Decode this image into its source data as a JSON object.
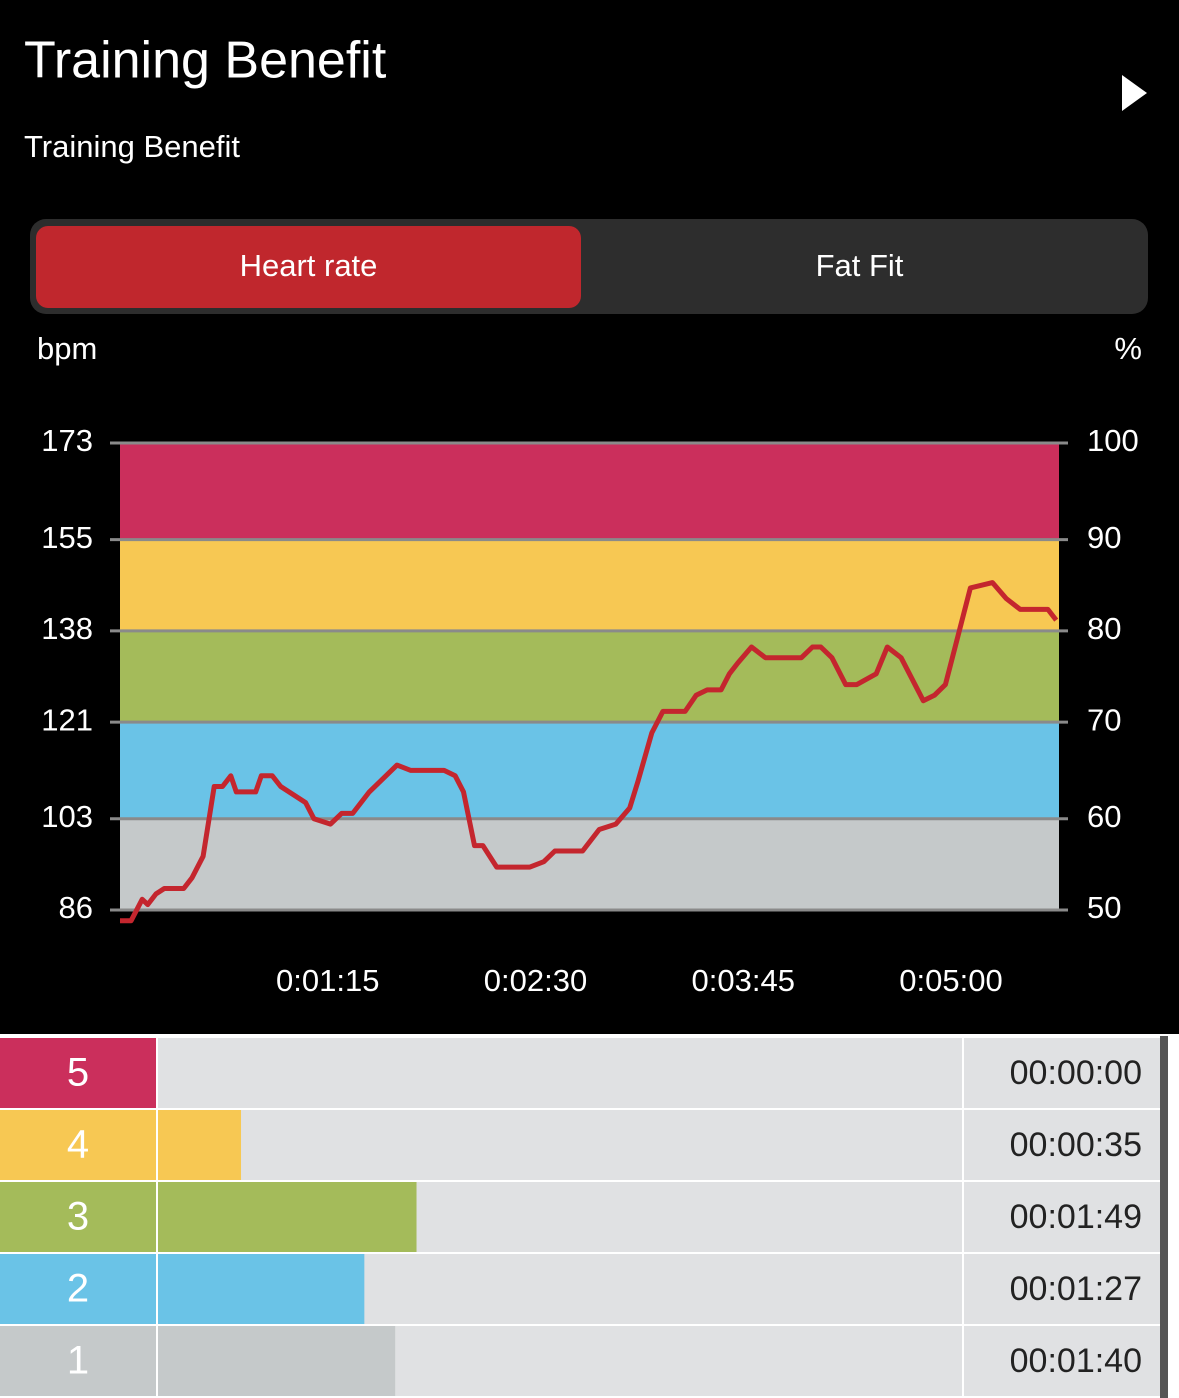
{
  "header": {
    "title": "Training Benefit",
    "subtitle": "Training Benefit"
  },
  "tabs": [
    {
      "label": "Heart rate",
      "selected": true
    },
    {
      "label": "Fat Fit",
      "selected": false
    }
  ],
  "chart_data": {
    "type": "line",
    "y_label": "bpm",
    "y2_label": "%",
    "color": "#c4262e",
    "x": [
      0,
      4,
      8,
      10,
      13,
      16,
      23,
      26,
      30,
      34,
      37,
      40,
      42,
      49,
      51,
      55,
      58,
      61,
      67,
      70,
      76,
      80,
      84,
      87,
      90,
      94,
      100,
      105,
      117,
      121,
      124,
      128,
      131,
      136,
      143,
      148,
      153,
      157,
      167,
      173,
      179,
      184,
      187,
      192,
      196,
      204,
      208,
      212,
      217,
      220,
      223,
      228,
      233,
      236,
      246,
      250,
      253,
      257,
      262,
      266,
      273,
      277,
      282,
      286,
      290,
      294,
      298,
      303,
      307,
      315,
      320,
      325,
      335,
      338
    ],
    "values": [
      84,
      84,
      88,
      87,
      89,
      90,
      90,
      92,
      96,
      109,
      109,
      111,
      108,
      108,
      111,
      111,
      109,
      108,
      106,
      103,
      102,
      104,
      104,
      106,
      108,
      110,
      113,
      112,
      112,
      111,
      108,
      98,
      98,
      94,
      94,
      94,
      95,
      97,
      97,
      101,
      102,
      105,
      110,
      119,
      123,
      123,
      126,
      127,
      127,
      130,
      132,
      135,
      133,
      133,
      133,
      135,
      135,
      133,
      128,
      128,
      130,
      135,
      133,
      129,
      125,
      126,
      128,
      138,
      146,
      147,
      144,
      142,
      142,
      140
    ],
    "xlim": [
      0,
      339
    ],
    "xticks": [
      {
        "value": 75,
        "label": "0:01:15"
      },
      {
        "value": 150,
        "label": "0:02:30"
      },
      {
        "value": 225,
        "label": "0:03:45"
      },
      {
        "value": 300,
        "label": "0:05:00"
      }
    ],
    "ylim": [
      86,
      173
    ],
    "yticks": [
      173,
      155,
      138,
      121,
      103,
      86
    ],
    "y2lim": [
      50,
      100
    ],
    "y2ticks": [
      100,
      90,
      80,
      70,
      60,
      50
    ],
    "band_colors": [
      "#cb2f5c",
      "#f7c853",
      "#a4bb5a",
      "#6ac3e7",
      "#c5c9ca"
    ],
    "grid": true
  },
  "zones": {
    "rows": [
      {
        "zone": "5",
        "color": "#cb2f5c",
        "time": {
          "value": 0,
          "label": "00:00:00"
        }
      },
      {
        "zone": "4",
        "color": "#f7c853",
        "time": {
          "value": 35,
          "label": "00:00:35"
        }
      },
      {
        "zone": "3",
        "color": "#a4bb5a",
        "time": {
          "value": 109,
          "label": "00:01:49"
        }
      },
      {
        "zone": "2",
        "color": "#6ac3e7",
        "time": {
          "value": 87,
          "label": "00:01:27"
        }
      },
      {
        "zone": "1",
        "color": "#c5c9ca",
        "time": {
          "value": 100,
          "label": "00:01:40"
        }
      }
    ]
  }
}
